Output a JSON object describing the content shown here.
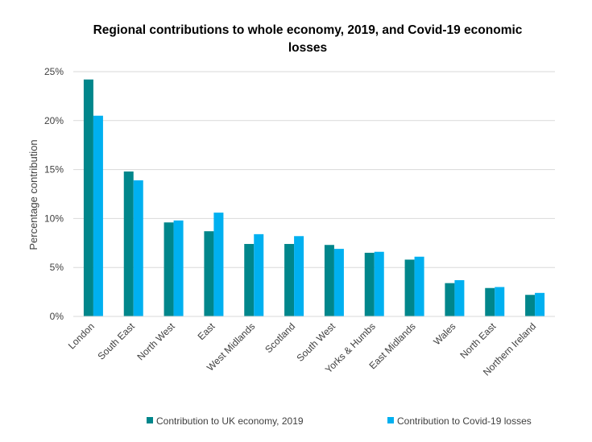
{
  "chart_data": {
    "type": "bar",
    "title_lines": [
      "Regional contributions to whole economy, 2019, and Covid-19 economic",
      "losses"
    ],
    "xlabel": "",
    "ylabel": "Percentage contribution",
    "ylim": [
      0,
      25
    ],
    "yticks": [
      "0%",
      "5%",
      "10%",
      "15%",
      "20%",
      "25%"
    ],
    "grid": true,
    "legend_position": "bottom",
    "categories": [
      "London",
      "South East",
      "North West",
      "East",
      "West Midlands",
      "Scotland",
      "South West",
      "Yorks & Humbs",
      "East Midlands",
      "Wales",
      "North East",
      "Northern Ireland"
    ],
    "series": [
      {
        "name": "Contribution to UK economy, 2019",
        "color": "#00868B",
        "values": [
          24.2,
          14.8,
          9.6,
          8.7,
          7.4,
          7.4,
          7.3,
          6.5,
          5.8,
          3.4,
          2.9,
          2.2
        ]
      },
      {
        "name": "Contribution to Covid-19 losses",
        "color": "#00B0F0",
        "values": [
          20.5,
          13.9,
          9.8,
          10.6,
          8.4,
          8.2,
          6.9,
          6.6,
          6.1,
          3.7,
          3.0,
          2.4
        ]
      }
    ]
  }
}
